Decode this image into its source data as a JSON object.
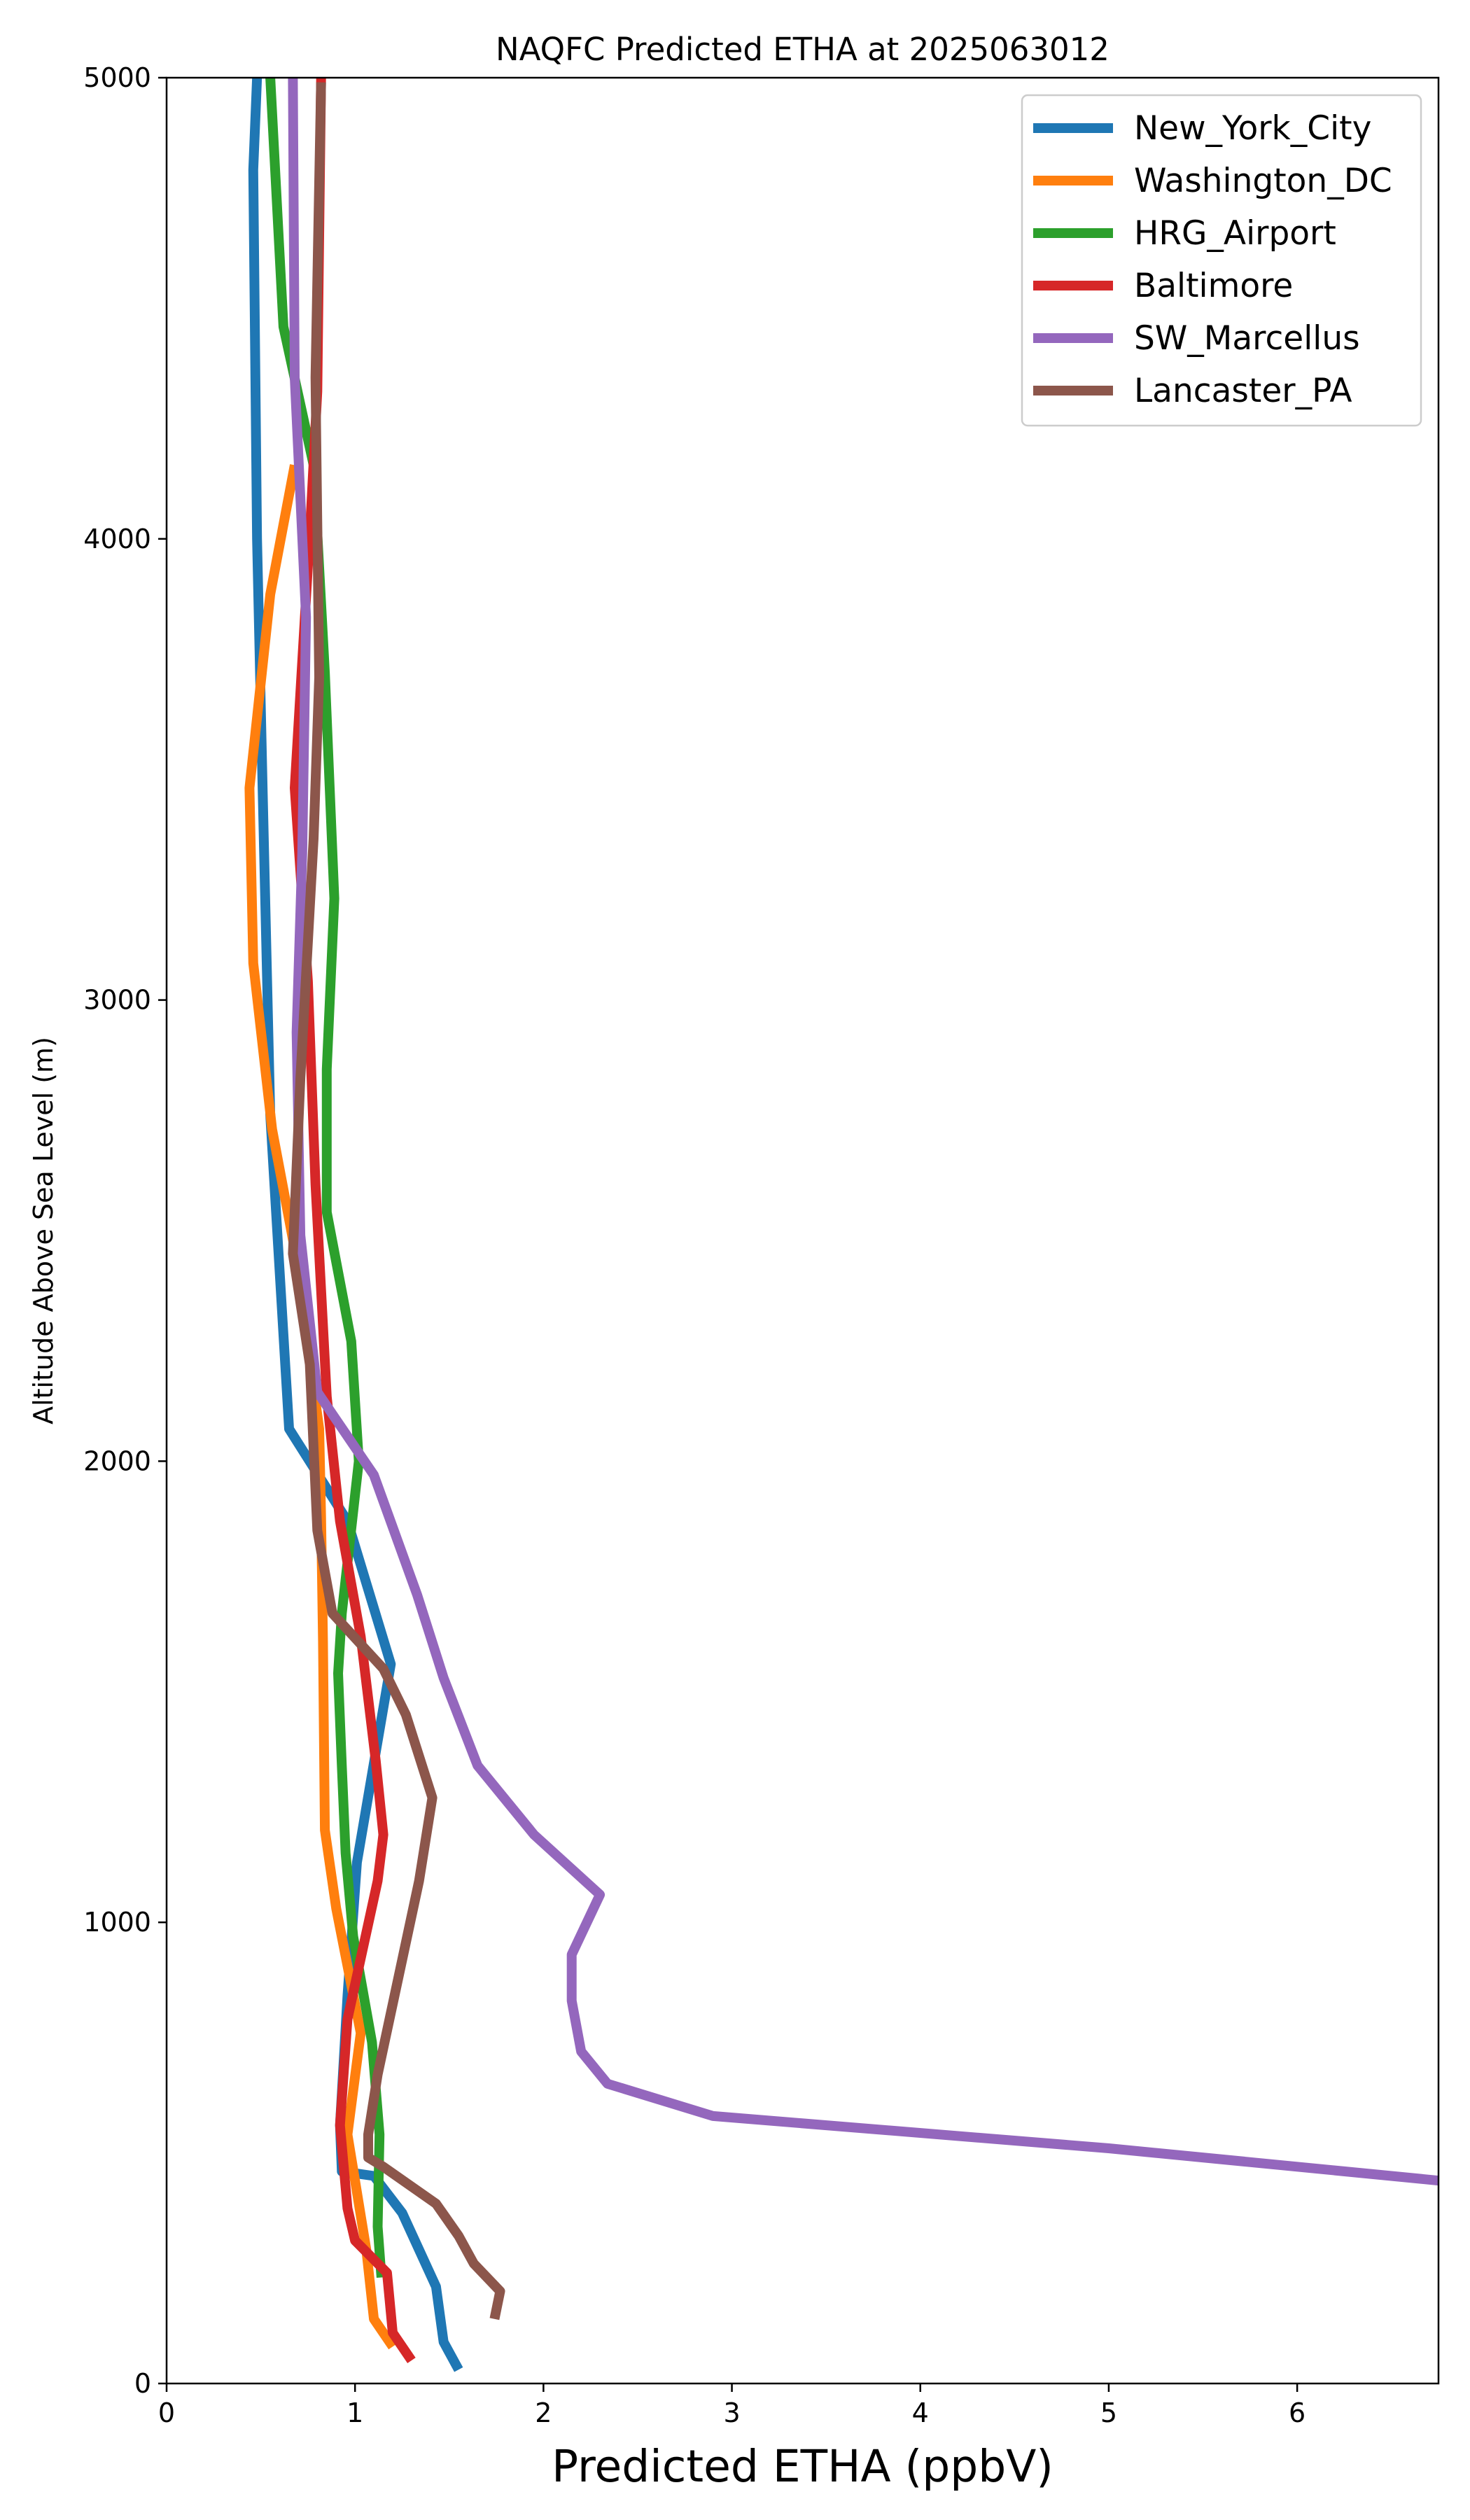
{
  "chart_data": {
    "type": "line",
    "title": "NAQFC Predicted ETHA at 2025063012",
    "xlabel": "Predicted ETHA (ppbV)",
    "ylabel": "Altitude Above Sea Level (m)",
    "xlim": [
      0,
      6.75
    ],
    "ylim": [
      0,
      5000
    ],
    "xticks": [
      0,
      1,
      2,
      3,
      4,
      5,
      6
    ],
    "yticks": [
      0,
      1000,
      2000,
      3000,
      4000,
      5000
    ],
    "grid": false,
    "legend_position": "top-right",
    "series": [
      {
        "name": "New_York_City",
        "color": "#1f77b4",
        "points": [
          [
            1.55,
            30
          ],
          [
            1.47,
            90
          ],
          [
            1.43,
            210
          ],
          [
            1.25,
            370
          ],
          [
            1.1,
            450
          ],
          [
            0.93,
            460
          ],
          [
            0.92,
            560
          ],
          [
            0.96,
            840
          ],
          [
            1.01,
            1130
          ],
          [
            1.19,
            1560
          ],
          [
            0.96,
            1870
          ],
          [
            0.65,
            2070
          ],
          [
            0.55,
            2750
          ],
          [
            0.51,
            3450
          ],
          [
            0.48,
            4000
          ],
          [
            0.46,
            4800
          ],
          [
            0.48,
            5000
          ]
        ]
      },
      {
        "name": "Washington_DC",
        "color": "#ff7f0e",
        "points": [
          [
            1.2,
            80
          ],
          [
            1.1,
            140
          ],
          [
            1.06,
            290
          ],
          [
            1.0,
            440
          ],
          [
            0.96,
            540
          ],
          [
            1.03,
            760
          ],
          [
            0.9,
            1030
          ],
          [
            0.84,
            1200
          ],
          [
            0.83,
            1610
          ],
          [
            0.82,
            1880
          ],
          [
            0.81,
            2070
          ],
          [
            0.68,
            2460
          ],
          [
            0.56,
            2720
          ],
          [
            0.46,
            3080
          ],
          [
            0.44,
            3460
          ],
          [
            0.55,
            3880
          ],
          [
            0.68,
            4160
          ]
        ]
      },
      {
        "name": "HRG_Airport",
        "color": "#2ca02c",
        "points": [
          [
            1.14,
            230
          ],
          [
            1.12,
            340
          ],
          [
            1.13,
            540
          ],
          [
            1.09,
            740
          ],
          [
            0.99,
            970
          ],
          [
            0.95,
            1150
          ],
          [
            0.93,
            1340
          ],
          [
            0.91,
            1540
          ],
          [
            0.93,
            1670
          ],
          [
            1.02,
            2000
          ],
          [
            0.98,
            2260
          ],
          [
            0.85,
            2540
          ],
          [
            0.85,
            2850
          ],
          [
            0.89,
            3220
          ],
          [
            0.84,
            3710
          ],
          [
            0.78,
            4160
          ],
          [
            0.62,
            4460
          ],
          [
            0.55,
            5000
          ]
        ]
      },
      {
        "name": "Baltimore",
        "color": "#d62728",
        "points": [
          [
            1.3,
            50
          ],
          [
            1.2,
            110
          ],
          [
            1.17,
            240
          ],
          [
            1.0,
            310
          ],
          [
            0.96,
            380
          ],
          [
            0.92,
            560
          ],
          [
            0.96,
            790
          ],
          [
            1.12,
            1090
          ],
          [
            1.15,
            1190
          ],
          [
            1.11,
            1350
          ],
          [
            1.03,
            1620
          ],
          [
            0.92,
            1870
          ],
          [
            0.85,
            2140
          ],
          [
            0.79,
            2600
          ],
          [
            0.75,
            3040
          ],
          [
            0.68,
            3460
          ],
          [
            0.76,
            4010
          ],
          [
            0.8,
            4320
          ],
          [
            0.82,
            5000
          ]
        ]
      },
      {
        "name": "SW_Marcellus",
        "color": "#9467bd",
        "points": [
          [
            6.75,
            440
          ],
          [
            5.0,
            510
          ],
          [
            2.9,
            580
          ],
          [
            2.34,
            650
          ],
          [
            2.2,
            720
          ],
          [
            2.15,
            830
          ],
          [
            2.15,
            930
          ],
          [
            2.3,
            1060
          ],
          [
            1.95,
            1190
          ],
          [
            1.65,
            1340
          ],
          [
            1.47,
            1530
          ],
          [
            1.33,
            1710
          ],
          [
            1.1,
            1970
          ],
          [
            0.8,
            2150
          ],
          [
            0.71,
            2490
          ],
          [
            0.69,
            2930
          ],
          [
            0.72,
            3320
          ],
          [
            0.74,
            3830
          ],
          [
            0.68,
            4350
          ],
          [
            0.67,
            5000
          ]
        ]
      },
      {
        "name": "Lancaster_PA",
        "color": "#8c564b",
        "points": [
          [
            1.74,
            140
          ],
          [
            1.77,
            200
          ],
          [
            1.63,
            260
          ],
          [
            1.55,
            320
          ],
          [
            1.43,
            390
          ],
          [
            1.15,
            470
          ],
          [
            1.07,
            490
          ],
          [
            1.07,
            540
          ],
          [
            1.12,
            670
          ],
          [
            1.34,
            1090
          ],
          [
            1.41,
            1270
          ],
          [
            1.27,
            1450
          ],
          [
            1.15,
            1550
          ],
          [
            0.88,
            1670
          ],
          [
            0.8,
            1850
          ],
          [
            0.76,
            2210
          ],
          [
            0.67,
            2450
          ],
          [
            0.71,
            2830
          ],
          [
            0.78,
            3350
          ],
          [
            0.81,
            3700
          ],
          [
            0.79,
            4350
          ],
          [
            0.82,
            4990
          ]
        ]
      }
    ]
  }
}
